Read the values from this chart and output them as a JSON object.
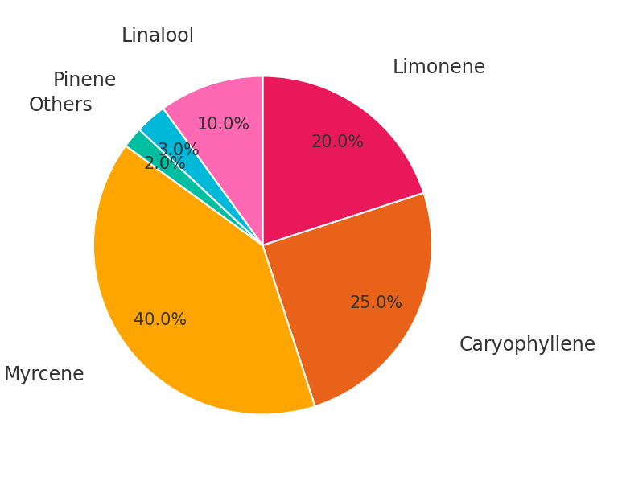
{
  "labels": [
    "Limonene",
    "Caryophyllene",
    "Myrcene",
    "Others",
    "Pinene",
    "Linalool"
  ],
  "values": [
    20.0,
    25.0,
    40.0,
    2.0,
    3.0,
    10.0
  ],
  "colors": [
    "#E8185A",
    "#E8621A",
    "#FFA500",
    "#00BFA0",
    "#00B8D8",
    "#FF69B4"
  ],
  "startangle": 90,
  "background_color": "#FFFFFF",
  "label_fontsize": 17,
  "pct_fontsize": 15,
  "pct_color": "#333333",
  "label_color": "#333333"
}
